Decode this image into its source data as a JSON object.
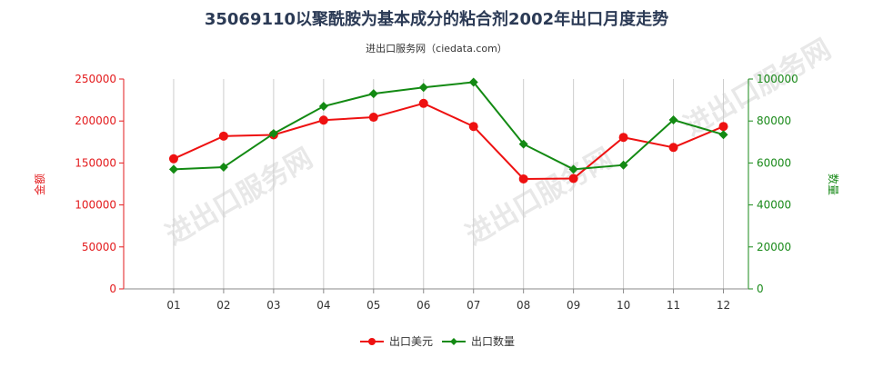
{
  "chart_data": {
    "type": "line",
    "title": "35069110以聚酰胺为基本成分的粘合剂2002年出口月度走势",
    "subtitle": "进出口服务网（ciedata.com）",
    "categories": [
      "01",
      "02",
      "03",
      "04",
      "05",
      "06",
      "07",
      "08",
      "09",
      "10",
      "11",
      "12"
    ],
    "left_axis": {
      "label": "金额",
      "range": [
        0,
        250000
      ],
      "ticks": [
        0,
        50000,
        100000,
        150000,
        200000,
        250000
      ],
      "tick_labels": [
        "0",
        "50000",
        "100000",
        "150000",
        "200000",
        "250000"
      ],
      "color": "#e31a1c"
    },
    "right_axis": {
      "label": "数量",
      "range": [
        0,
        100000
      ],
      "ticks": [
        0,
        20000,
        40000,
        60000,
        80000,
        100000
      ],
      "tick_labels": [
        "0",
        "20000",
        "40000",
        "60000",
        "80000",
        "100000"
      ],
      "color": "#1a8a1a"
    },
    "series": [
      {
        "name": "出口美元",
        "axis": "left",
        "color": "#ee1111",
        "marker": "circle",
        "values": [
          155000,
          182000,
          183500,
          201000,
          204500,
          221000,
          193500,
          131000,
          131500,
          180500,
          168500,
          193500
        ]
      },
      {
        "name": "出口数量",
        "axis": "right",
        "color": "#138a13",
        "marker": "diamond",
        "values": [
          57000,
          58000,
          74000,
          87000,
          93000,
          96000,
          98500,
          69000,
          57000,
          59000,
          80500,
          73500
        ]
      }
    ],
    "grid": {
      "vertical": true,
      "horizontal": false
    },
    "legend_position": "bottom-center",
    "watermark": "进出口服务网"
  }
}
